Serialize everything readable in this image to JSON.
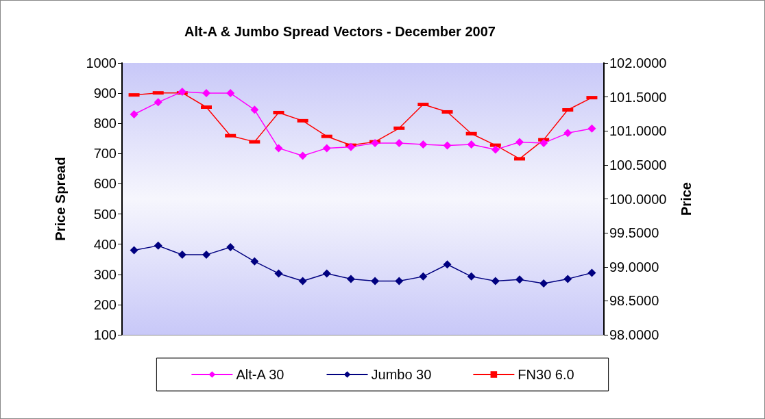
{
  "chart_data": {
    "type": "line",
    "title": "Alt-A & Jumbo Spread Vectors - December 2007",
    "categories": [
      null,
      null,
      null,
      null,
      null,
      null,
      null,
      null,
      null,
      null,
      null,
      null,
      null,
      null,
      null,
      null,
      null,
      null,
      null,
      null
    ],
    "ylabel": "Price Spread",
    "y2label": "Price",
    "ylim": [
      100,
      1000
    ],
    "yticks": [
      100,
      200,
      300,
      400,
      500,
      600,
      700,
      800,
      900,
      1000
    ],
    "y2lim": [
      98,
      102
    ],
    "y2ticks": [
      {
        "value": 98,
        "label": "98.0000"
      },
      {
        "value": 98.5,
        "label": "98.5000"
      },
      {
        "value": 99,
        "label": "99.0000"
      },
      {
        "value": 99.5,
        "label": "99.5000"
      },
      {
        "value": 100,
        "label": "100.0000"
      },
      {
        "value": 100.5,
        "label": "100.5000"
      },
      {
        "value": 101,
        "label": "101.0000"
      },
      {
        "value": 101.5,
        "label": "101.5000"
      },
      {
        "value": 102,
        "label": "102.0000"
      }
    ],
    "grid": false,
    "legend": "bottom",
    "series": [
      {
        "name": "Alt-A 30",
        "color": "#ff00ff",
        "marker": "diamond",
        "values": [
          830,
          870,
          905,
          900,
          900,
          845,
          718,
          693,
          718,
          722,
          735,
          735,
          730,
          727,
          730,
          713,
          738,
          735,
          768,
          783
        ]
      },
      {
        "name": "Jumbo 30",
        "color": "#000080",
        "marker": "diamond",
        "values": [
          380,
          395,
          365,
          365,
          390,
          343,
          303,
          278,
          303,
          285,
          278,
          278,
          293,
          333,
          293,
          278,
          283,
          270,
          285,
          305
        ]
      },
      {
        "name": "FN30 6.0",
        "color": "#ff0000",
        "marker": "square",
        "axis": "y2",
        "values": [
          101.53,
          101.56,
          101.56,
          101.35,
          100.93,
          100.84,
          101.27,
          101.15,
          100.92,
          100.79,
          100.84,
          101.04,
          101.39,
          101.28,
          100.96,
          100.79,
          100.59,
          100.87,
          101.31,
          101.49
        ]
      }
    ]
  }
}
